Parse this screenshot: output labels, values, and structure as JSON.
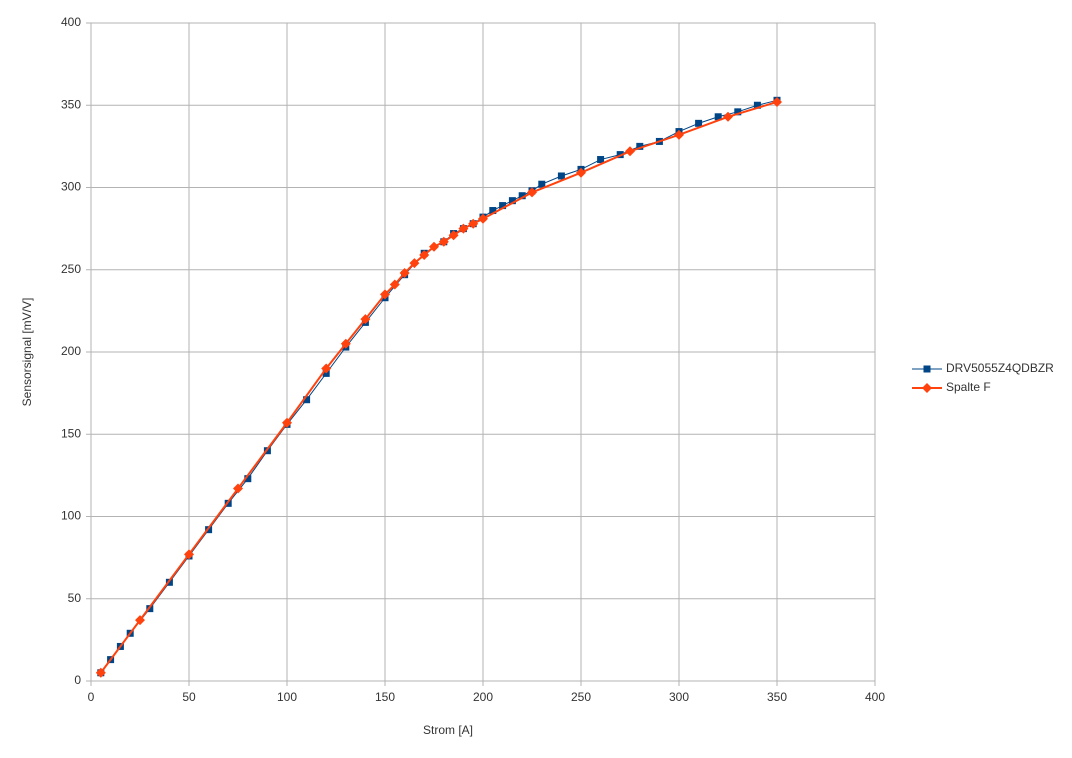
{
  "chart_data": {
    "type": "scatter",
    "x_label": "Strom [A]",
    "y_label": "Sensorsignal [mV/V]",
    "xlim": [
      0,
      400
    ],
    "xticks": [
      0,
      50,
      100,
      150,
      200,
      250,
      300,
      350,
      400
    ],
    "ylim": [
      0,
      400
    ],
    "yticks": [
      0,
      50,
      100,
      150,
      200,
      250,
      300,
      350,
      400
    ],
    "grid": true,
    "legend": "right",
    "series": [
      {
        "name": "DRV5055Z4QDBZR",
        "color": "#004586",
        "marker": "square",
        "x": [
          5,
          10,
          15,
          20,
          30,
          40,
          50,
          60,
          70,
          80,
          90,
          100,
          110,
          120,
          130,
          140,
          150,
          160,
          170,
          180,
          185,
          190,
          195,
          200,
          205,
          210,
          215,
          220,
          225,
          230,
          240,
          250,
          260,
          270,
          280,
          290,
          300,
          310,
          320,
          330,
          340,
          350
        ],
        "values": [
          5,
          13,
          21,
          29,
          44,
          60,
          76,
          92,
          108,
          123,
          140,
          156,
          171,
          187,
          203,
          218,
          233,
          247,
          260,
          267,
          272,
          275,
          278,
          282,
          286,
          289,
          292,
          295,
          298,
          302,
          307,
          311,
          317,
          320,
          325,
          328,
          334,
          339,
          343,
          346,
          350,
          353
        ]
      },
      {
        "name": "Spalte F",
        "color": "#ff420e",
        "marker": "diamond",
        "x": [
          5,
          25,
          50,
          75,
          100,
          120,
          130,
          140,
          150,
          155,
          160,
          165,
          170,
          175,
          180,
          185,
          190,
          195,
          200,
          225,
          250,
          275,
          300,
          325,
          350
        ],
        "values": [
          5,
          37,
          77,
          117,
          157,
          190,
          205,
          220,
          235,
          241,
          248,
          254,
          259,
          264,
          267,
          271,
          275,
          278,
          281,
          297,
          309,
          322,
          332,
          343,
          352
        ]
      }
    ]
  }
}
